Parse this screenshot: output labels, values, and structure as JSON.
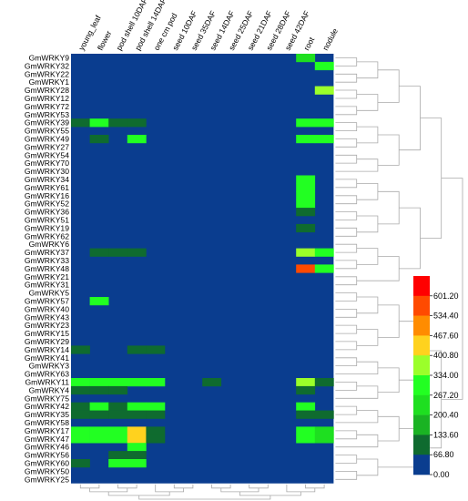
{
  "chart_data": {
    "type": "heatmap",
    "title": "",
    "xlabel": "",
    "ylabel": "",
    "columns": [
      "young_leaf",
      "flower",
      "pod shell 10DAF",
      "pod shell 14DAF",
      "one cm pod",
      "seed 10DAF",
      "seed 35DAF",
      "seed 14DAF",
      "seed 25DAF",
      "seed 21DAF",
      "seed 28DAF",
      "seed 42DAF",
      "root",
      "nodule"
    ],
    "rows": [
      "GmWRKY9",
      "GmWRKY32",
      "GmWRKY22",
      "GmWRKY1",
      "GmWRKY28",
      "GmWRKY12",
      "GmWRKY72",
      "GmWRKY53",
      "GmWRKY39",
      "GmWRKY55",
      "GmWRKY49",
      "GmWRKY27",
      "GmWRKY54",
      "GmWRKY70",
      "GmWRKY30",
      "GmWRKY34",
      "GmWRKY61",
      "GmWRKY16",
      "GmWRKY52",
      "GmWRKY36",
      "GmWRKY51",
      "GmWRKY19",
      "GmWRKY62",
      "GmWRKY6",
      "GmWRKY37",
      "GmWRKY33",
      "GmWRKY48",
      "GmWRKY21",
      "GmWRKY31",
      "GmWRKY5",
      "GmWRKY57",
      "GmWRKY40",
      "GmWRKY43",
      "GmWRKY23",
      "GmWRKY15",
      "GmWRKY29",
      "GmWRKY14",
      "GmWRKY41",
      "GmWRKY3",
      "GmWRKY63",
      "GmWRKY11",
      "GmWRKY4",
      "GmWRKY75",
      "GmWRKY42",
      "GmWRKY35",
      "GmWRKY58",
      "GmWRKY17",
      "GmWRKY47",
      "GmWRKY46",
      "GmWRKY56",
      "GmWRKY60",
      "GmWRKY50",
      "GmWRKY25"
    ],
    "values": [
      [
        0,
        0,
        0,
        0,
        0,
        0,
        0,
        0,
        0,
        0,
        0,
        0,
        240,
        0
      ],
      [
        0,
        0,
        0,
        0,
        0,
        0,
        0,
        0,
        0,
        0,
        0,
        0,
        0,
        280
      ],
      [
        0,
        0,
        0,
        0,
        0,
        0,
        0,
        0,
        0,
        0,
        0,
        0,
        0,
        0
      ],
      [
        0,
        0,
        0,
        0,
        0,
        0,
        0,
        0,
        0,
        0,
        0,
        0,
        0,
        0
      ],
      [
        0,
        0,
        0,
        0,
        0,
        0,
        0,
        0,
        0,
        0,
        0,
        0,
        0,
        350
      ],
      [
        0,
        0,
        0,
        0,
        0,
        0,
        0,
        0,
        0,
        0,
        0,
        0,
        0,
        0
      ],
      [
        0,
        0,
        0,
        0,
        0,
        0,
        0,
        0,
        0,
        0,
        0,
        0,
        0,
        0
      ],
      [
        0,
        0,
        0,
        0,
        0,
        0,
        0,
        0,
        0,
        0,
        0,
        0,
        0,
        0
      ],
      [
        110,
        280,
        110,
        110,
        0,
        0,
        0,
        0,
        0,
        0,
        0,
        0,
        270,
        270
      ],
      [
        0,
        0,
        0,
        0,
        0,
        0,
        0,
        0,
        0,
        0,
        0,
        0,
        0,
        0
      ],
      [
        0,
        110,
        0,
        270,
        0,
        0,
        0,
        0,
        0,
        0,
        0,
        0,
        270,
        270
      ],
      [
        0,
        0,
        0,
        0,
        0,
        0,
        0,
        0,
        0,
        0,
        0,
        0,
        0,
        0
      ],
      [
        0,
        0,
        0,
        0,
        0,
        0,
        0,
        0,
        0,
        0,
        0,
        0,
        0,
        0
      ],
      [
        0,
        0,
        0,
        0,
        0,
        0,
        0,
        0,
        0,
        0,
        0,
        0,
        0,
        0
      ],
      [
        0,
        0,
        0,
        0,
        0,
        0,
        0,
        0,
        0,
        0,
        0,
        0,
        0,
        0
      ],
      [
        0,
        0,
        0,
        0,
        0,
        0,
        0,
        0,
        0,
        0,
        0,
        0,
        270,
        0
      ],
      [
        0,
        0,
        0,
        0,
        0,
        0,
        0,
        0,
        0,
        0,
        0,
        0,
        270,
        0
      ],
      [
        0,
        0,
        0,
        0,
        0,
        0,
        0,
        0,
        0,
        0,
        0,
        0,
        270,
        0
      ],
      [
        0,
        0,
        0,
        0,
        0,
        0,
        0,
        0,
        0,
        0,
        0,
        0,
        270,
        0
      ],
      [
        0,
        0,
        0,
        0,
        0,
        0,
        0,
        0,
        0,
        0,
        0,
        0,
        110,
        0
      ],
      [
        0,
        0,
        0,
        0,
        0,
        0,
        0,
        0,
        0,
        0,
        0,
        0,
        0,
        0
      ],
      [
        0,
        0,
        0,
        0,
        0,
        0,
        0,
        0,
        0,
        0,
        0,
        0,
        110,
        0
      ],
      [
        0,
        0,
        0,
        0,
        0,
        0,
        0,
        0,
        0,
        0,
        0,
        0,
        0,
        0
      ],
      [
        0,
        0,
        0,
        0,
        0,
        0,
        0,
        0,
        0,
        0,
        0,
        0,
        0,
        0
      ],
      [
        0,
        110,
        110,
        110,
        0,
        0,
        0,
        0,
        0,
        0,
        0,
        0,
        340,
        270
      ],
      [
        0,
        0,
        0,
        0,
        0,
        0,
        0,
        0,
        0,
        0,
        0,
        0,
        0,
        0
      ],
      [
        0,
        0,
        0,
        0,
        0,
        0,
        0,
        0,
        0,
        0,
        0,
        0,
        600,
        270
      ],
      [
        0,
        0,
        0,
        0,
        0,
        0,
        0,
        0,
        0,
        0,
        0,
        0,
        0,
        0
      ],
      [
        0,
        0,
        0,
        0,
        0,
        0,
        0,
        0,
        0,
        0,
        0,
        0,
        0,
        0
      ],
      [
        0,
        0,
        0,
        0,
        0,
        0,
        0,
        0,
        0,
        0,
        0,
        0,
        0,
        0
      ],
      [
        0,
        270,
        0,
        0,
        0,
        0,
        0,
        0,
        0,
        0,
        0,
        0,
        0,
        0
      ],
      [
        0,
        0,
        0,
        0,
        0,
        0,
        0,
        0,
        0,
        0,
        0,
        0,
        0,
        0
      ],
      [
        0,
        0,
        0,
        0,
        0,
        0,
        0,
        0,
        0,
        0,
        0,
        0,
        0,
        0
      ],
      [
        0,
        0,
        0,
        0,
        0,
        0,
        0,
        0,
        0,
        0,
        0,
        0,
        0,
        0
      ],
      [
        0,
        0,
        0,
        0,
        0,
        0,
        0,
        0,
        0,
        0,
        0,
        0,
        0,
        0
      ],
      [
        0,
        0,
        0,
        0,
        0,
        0,
        0,
        0,
        0,
        0,
        0,
        0,
        0,
        0
      ],
      [
        110,
        0,
        0,
        110,
        110,
        0,
        0,
        0,
        0,
        0,
        0,
        0,
        0,
        0
      ],
      [
        0,
        0,
        0,
        0,
        0,
        0,
        0,
        0,
        0,
        0,
        0,
        0,
        0,
        0
      ],
      [
        0,
        0,
        0,
        0,
        0,
        0,
        0,
        0,
        0,
        0,
        0,
        0,
        0,
        0
      ],
      [
        0,
        0,
        0,
        0,
        0,
        0,
        0,
        0,
        0,
        0,
        0,
        0,
        0,
        0
      ],
      [
        270,
        270,
        270,
        270,
        270,
        0,
        0,
        110,
        0,
        0,
        0,
        0,
        340,
        110
      ],
      [
        110,
        110,
        110,
        0,
        0,
        0,
        0,
        0,
        0,
        0,
        0,
        0,
        110,
        0
      ],
      [
        0,
        0,
        0,
        0,
        0,
        0,
        0,
        0,
        0,
        0,
        0,
        0,
        0,
        0
      ],
      [
        110,
        270,
        110,
        270,
        270,
        0,
        0,
        0,
        0,
        0,
        0,
        0,
        270,
        0
      ],
      [
        110,
        110,
        110,
        110,
        110,
        0,
        0,
        0,
        0,
        0,
        0,
        0,
        110,
        110
      ],
      [
        0,
        0,
        0,
        0,
        0,
        0,
        0,
        0,
        0,
        0,
        0,
        0,
        0,
        0
      ],
      [
        270,
        270,
        270,
        420,
        110,
        0,
        0,
        0,
        0,
        0,
        0,
        0,
        270,
        220
      ],
      [
        270,
        270,
        270,
        420,
        110,
        0,
        0,
        0,
        0,
        0,
        0,
        0,
        270,
        220
      ],
      [
        0,
        0,
        0,
        270,
        0,
        0,
        0,
        0,
        0,
        0,
        0,
        0,
        0,
        0
      ],
      [
        0,
        0,
        110,
        110,
        0,
        0,
        0,
        0,
        0,
        0,
        0,
        0,
        0,
        0
      ],
      [
        110,
        0,
        270,
        270,
        0,
        0,
        0,
        0,
        0,
        0,
        0,
        0,
        0,
        0
      ],
      [
        0,
        0,
        0,
        0,
        0,
        0,
        0,
        0,
        0,
        0,
        0,
        0,
        0,
        0
      ],
      [
        0,
        0,
        0,
        0,
        0,
        0,
        0,
        0,
        0,
        0,
        0,
        0,
        0,
        0
      ]
    ],
    "legend": {
      "placement": "right",
      "tick_labels": [
        "601.20",
        "534.40",
        "467.60",
        "400.80",
        "334.00",
        "267.20",
        "200.40",
        "133.60",
        "66.80",
        "0.00"
      ],
      "colors": [
        "#ff0000",
        "#ff4a00",
        "#ff8c00",
        "#ffd21e",
        "#9bff2a",
        "#22ff22",
        "#1edf20",
        "#1ab323",
        "#0f6b2f",
        "#0a3d8f"
      ]
    },
    "grid": false
  }
}
